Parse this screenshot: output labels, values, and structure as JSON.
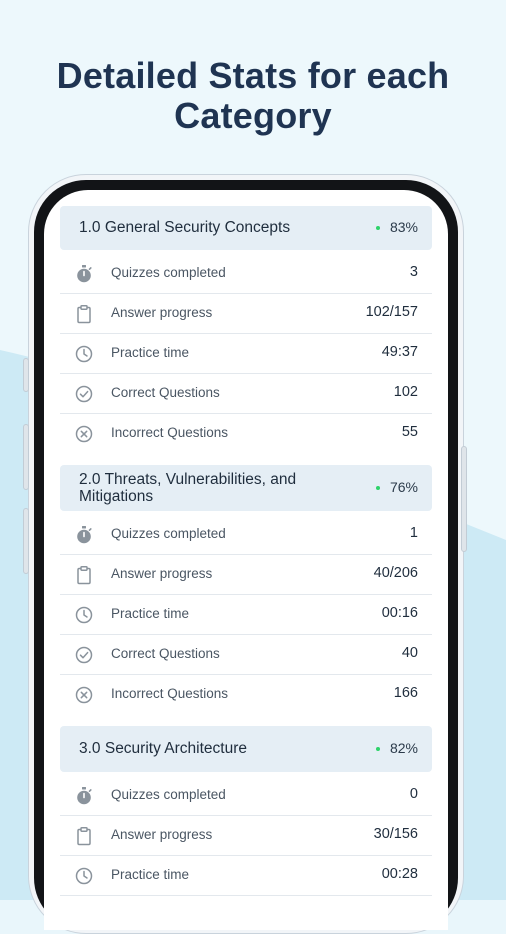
{
  "headline": {
    "line1": "Detailed Stats for each",
    "line2": "Category"
  },
  "colors": {
    "headline": "#1f3452",
    "background": "#e9f6fb",
    "category_header_bg": "#e5eef5",
    "status_dot": "#2ed36a"
  },
  "categories": [
    {
      "title": "1.0 General Security Concepts",
      "percent": "83%",
      "rows": [
        {
          "icon": "stopwatch-icon",
          "label": "Quizzes completed",
          "value": "3"
        },
        {
          "icon": "clipboard-icon",
          "label": "Answer progress",
          "value": "102/157"
        },
        {
          "icon": "clock-icon",
          "label": "Practice time",
          "value": "49:37"
        },
        {
          "icon": "check-circle-icon",
          "label": "Correct Questions",
          "value": "102"
        },
        {
          "icon": "x-circle-icon",
          "label": "Incorrect Questions",
          "value": "55"
        }
      ]
    },
    {
      "title": "2.0 Threats, Vulnerabilities, and Mitigations",
      "percent": "76%",
      "rows": [
        {
          "icon": "stopwatch-icon",
          "label": "Quizzes completed",
          "value": "1"
        },
        {
          "icon": "clipboard-icon",
          "label": "Answer progress",
          "value": "40/206"
        },
        {
          "icon": "clock-icon",
          "label": "Practice time",
          "value": "00:16"
        },
        {
          "icon": "check-circle-icon",
          "label": "Correct Questions",
          "value": "40"
        },
        {
          "icon": "x-circle-icon",
          "label": "Incorrect Questions",
          "value": "166"
        }
      ]
    },
    {
      "title": "3.0 Security Architecture",
      "percent": "82%",
      "rows": [
        {
          "icon": "stopwatch-icon",
          "label": "Quizzes completed",
          "value": "0"
        },
        {
          "icon": "clipboard-icon",
          "label": "Answer progress",
          "value": "30/156"
        },
        {
          "icon": "clock-icon",
          "label": "Practice time",
          "value": "00:28"
        }
      ]
    }
  ]
}
